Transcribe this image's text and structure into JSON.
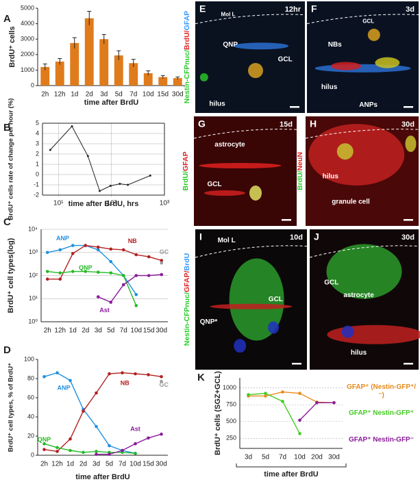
{
  "chart_data": [
    {
      "label": "A",
      "type": "bar",
      "categories": [
        "2h",
        "12h",
        "1d",
        "2d",
        "3d",
        "5d",
        "7d",
        "10d",
        "15d",
        "30d"
      ],
      "values": [
        1200,
        1550,
        2750,
        4350,
        3000,
        1950,
        1450,
        800,
        550,
        480
      ],
      "errors": [
        200,
        200,
        350,
        450,
        300,
        300,
        250,
        150,
        100,
        80
      ],
      "color": "#e07b1c",
      "ylim": [
        0,
        5000
      ],
      "yticks": [
        0,
        1000,
        2000,
        3000,
        4000,
        5000
      ],
      "ylabel": "BrdU⁺ cells",
      "xlabel": "time after BrdU"
    },
    {
      "label": "B",
      "type": "line",
      "log_x": true,
      "x": [
        7,
        18,
        36,
        60,
        96,
        144,
        204,
        540
      ],
      "values": [
        2.4,
        4.7,
        1.8,
        -1.6,
        -1.1,
        -0.9,
        -1.0,
        -0.1
      ],
      "color": "#222222",
      "xlim": [
        5,
        1000
      ],
      "xticks": [
        {
          "value": 10,
          "label": "10¹"
        },
        {
          "value": 100,
          "label": "10²"
        },
        {
          "value": 1000,
          "label": "10³"
        }
      ],
      "ylim": [
        -2,
        5
      ],
      "yticks": [
        -2,
        -1,
        0,
        1,
        2,
        3,
        4,
        5
      ],
      "grid": true,
      "ylabel": "BrdU⁺ cells rate of change per hour (%)",
      "xlabel": "time after BrdU, hrs"
    },
    {
      "label": "C",
      "type": "line",
      "log_y": true,
      "categories": [
        "2h",
        "12h",
        "1d",
        "2d",
        "3d",
        "5d",
        "7d",
        "10d",
        "15d",
        "30d"
      ],
      "series": [
        {
          "name": "ANP",
          "color": "#1e8fe0",
          "values": [
            1000,
            1300,
            2000,
            2000,
            1300,
            400,
            100,
            15,
            null,
            null
          ]
        },
        {
          "name": "NB",
          "color": "#b22020",
          "values": [
            70,
            70,
            900,
            2000,
            1700,
            1400,
            1300,
            800,
            650,
            450
          ]
        },
        {
          "name": "QNP",
          "color": "#22bb22",
          "values": [
            150,
            130,
            150,
            150,
            140,
            130,
            100,
            5,
            null,
            null
          ]
        },
        {
          "name": "Ast",
          "color": "#8a1a9a",
          "values": [
            null,
            null,
            null,
            null,
            12,
            7,
            40,
            100,
            100,
            110
          ]
        },
        {
          "name": "GC",
          "color": "#999999",
          "values": [
            null,
            null,
            null,
            null,
            null,
            null,
            null,
            null,
            null,
            350
          ]
        }
      ],
      "ylim": [
        1,
        10000
      ],
      "yticks": [
        {
          "value": 1,
          "label": "10⁰"
        },
        {
          "value": 10,
          "label": "10¹"
        },
        {
          "value": 100,
          "label": "10²"
        },
        {
          "value": 1000,
          "label": "10³"
        },
        {
          "value": 10000,
          "label": "10⁴"
        }
      ],
      "grid": true,
      "ylabel": "BrdU⁺ cell types(log)"
    },
    {
      "label": "D",
      "type": "line",
      "categories": [
        "2h",
        "12h",
        "1d",
        "2d",
        "3d",
        "5d",
        "7d",
        "10d",
        "15d",
        "30d"
      ],
      "series": [
        {
          "name": "ANP",
          "color": "#1e8fe0",
          "values": [
            82,
            86,
            78,
            48,
            30,
            10,
            5,
            2,
            null,
            null
          ]
        },
        {
          "name": "NB",
          "color": "#b22020",
          "values": [
            6,
            4,
            17,
            46,
            65,
            85,
            86,
            85,
            84,
            82
          ]
        },
        {
          "name": "QNP",
          "color": "#22bb22",
          "values": [
            12,
            8,
            5,
            3,
            4,
            3,
            3,
            2,
            null,
            null
          ]
        },
        {
          "name": "Ast",
          "color": "#8a1a9a",
          "values": [
            null,
            null,
            null,
            null,
            1,
            1,
            5,
            12,
            18,
            22
          ]
        },
        {
          "name": "GC",
          "color": "#999999",
          "values": [
            null,
            null,
            null,
            null,
            null,
            null,
            null,
            null,
            null,
            77
          ]
        }
      ],
      "ylim": [
        0,
        100
      ],
      "yticks": [
        0,
        20,
        40,
        60,
        80,
        100
      ],
      "ylabel": "BrdU⁺ cell types, % of BrdU⁺",
      "xlabel": "time after BrdU"
    },
    {
      "label": "K",
      "type": "line",
      "categories": [
        "3d",
        "5d",
        "7d",
        "10d",
        "20d",
        "30d"
      ],
      "series": [
        {
          "name": "GFAP⁺ (Nestin-GFP⁺/⁻)",
          "color": "#e88a1a",
          "values": [
            880,
            880,
            940,
            920,
            790,
            780
          ]
        },
        {
          "name": "GFAP⁺ Nestin-GFP⁺",
          "color": "#44cc22",
          "values": [
            900,
            920,
            800,
            320,
            null,
            null
          ]
        },
        {
          "name": "GFAP⁺ Nestin-GFP⁻",
          "color": "#8a1a9a",
          "values": [
            null,
            null,
            null,
            520,
            780,
            780
          ]
        }
      ],
      "ylim": [
        100,
        1150
      ],
      "yticks": [
        250,
        500,
        750,
        1000
      ],
      "grid": true,
      "ylabel": "BrdU⁺ cells (SGZ+GCL)",
      "xlabel": "time after BrdU"
    }
  ],
  "image_panels": [
    {
      "label": "E",
      "time": "12hr",
      "notes": [
        "Mol L",
        "QNP",
        "GCL",
        "hilus"
      ],
      "stain": [
        {
          "text": "Nestin-CFPnuc/",
          "color": "#22cc22"
        },
        {
          "text": "BrdU/",
          "color": "#dd2222"
        },
        {
          "text": "GFAP",
          "color": "#3399ff"
        }
      ]
    },
    {
      "label": "F",
      "time": "3d",
      "notes": [
        "GCL",
        "NBs",
        "hilus",
        "ANPs"
      ]
    },
    {
      "label": "G",
      "time": "15d",
      "notes": [
        "astrocyte",
        "GCL"
      ],
      "stain": [
        {
          "text": "BrdU/",
          "color": "#22cc22"
        },
        {
          "text": "GFAP",
          "color": "#dd2222"
        }
      ]
    },
    {
      "label": "H",
      "time": "30d",
      "notes": [
        "hilus",
        "granule cell"
      ],
      "stain": [
        {
          "text": "BrdU/",
          "color": "#22cc22"
        },
        {
          "text": "NeuN",
          "color": "#dd2222"
        }
      ]
    },
    {
      "label": "I",
      "time": "10d",
      "notes": [
        "Mol L",
        "QNP*",
        "GCL"
      ],
      "stain": [
        {
          "text": "Nestin-CFPnuc/",
          "color": "#22cc22"
        },
        {
          "text": "GFAP/",
          "color": "#dd2222"
        },
        {
          "text": "BrdU",
          "color": "#3399ff"
        }
      ]
    },
    {
      "label": "J",
      "time": "30d",
      "notes": [
        "GCL",
        "astrocyte",
        "hilus"
      ]
    }
  ]
}
